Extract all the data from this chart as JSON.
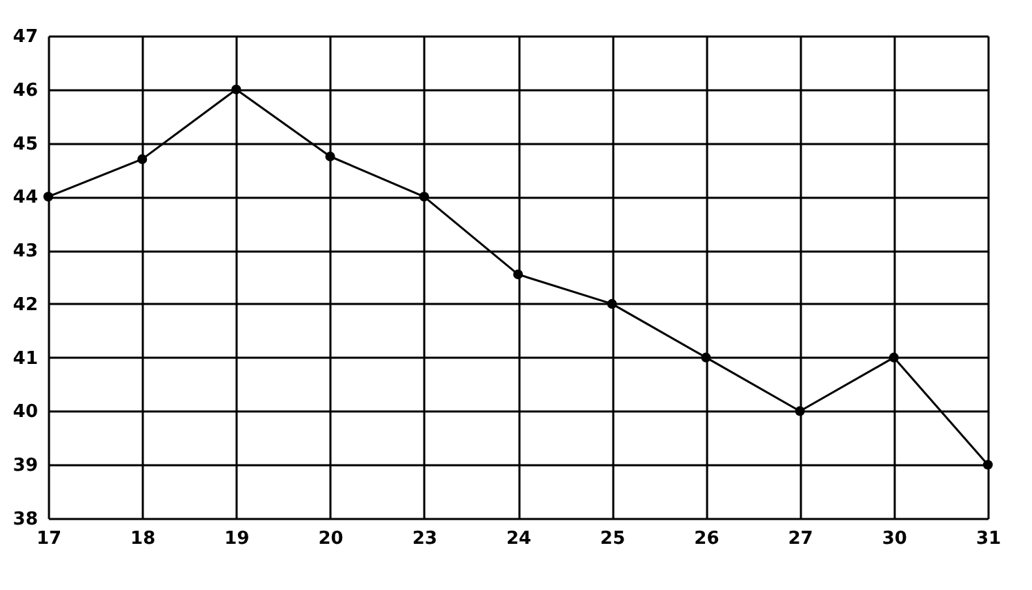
{
  "chart_data": {
    "type": "line",
    "categories": [
      "17",
      "18",
      "19",
      "20",
      "23",
      "24",
      "25",
      "26",
      "27",
      "30",
      "31"
    ],
    "series": [
      {
        "color": "#000000",
        "values": [
          44,
          44.7,
          46,
          44.75,
          44,
          42.55,
          42,
          41,
          40,
          41,
          39
        ]
      }
    ],
    "ylim": [
      38,
      47
    ],
    "yticks": [
      38,
      39,
      40,
      41,
      42,
      43,
      44,
      45,
      46,
      47
    ],
    "grid": true,
    "marker": "circle",
    "line_style": "solid"
  }
}
